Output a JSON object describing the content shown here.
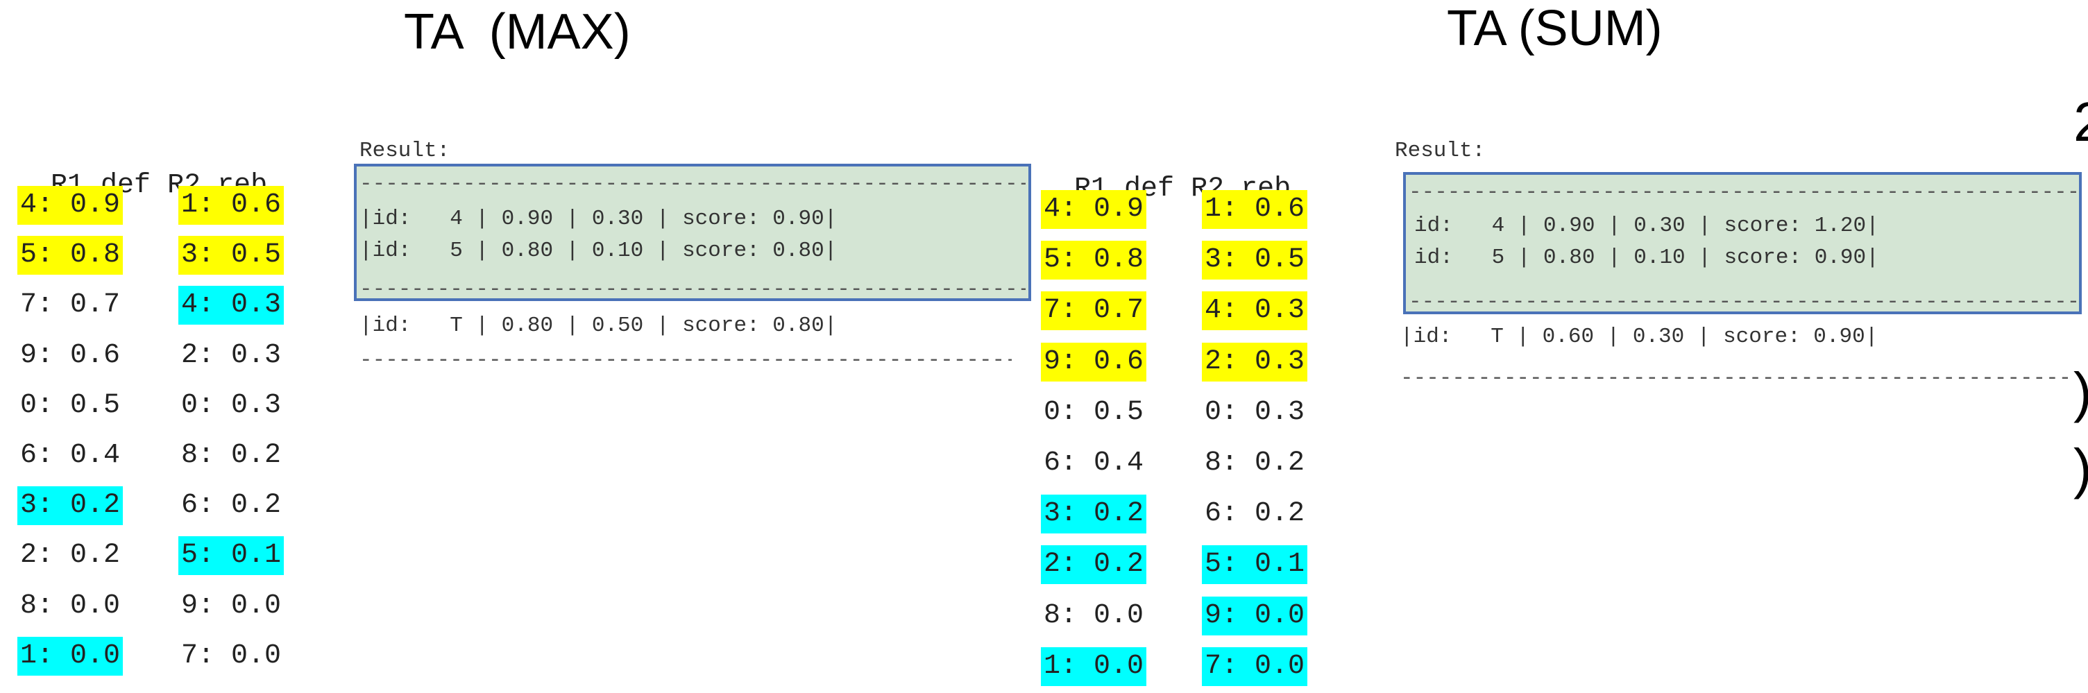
{
  "titles": {
    "left": "TA  (MAX)",
    "right": "TA (SUM)"
  },
  "columns": {
    "r1": "R1",
    "def": "def",
    "r2": "R2",
    "reb": "reb"
  },
  "max_panel": {
    "rows": [
      {
        "l": "4: 0.9",
        "lh": "y",
        "r": "1: 0.6",
        "rh": "y"
      },
      {
        "l": "5: 0.8",
        "lh": "y",
        "r": "3: 0.5",
        "rh": "y"
      },
      {
        "l": "7: 0.7",
        "lh": "",
        "r": "4: 0.3",
        "rh": "c"
      },
      {
        "l": "9: 0.6",
        "lh": "",
        "r": "2: 0.3",
        "rh": ""
      },
      {
        "l": "0: 0.5",
        "lh": "",
        "r": "0: 0.3",
        "rh": ""
      },
      {
        "l": "6: 0.4",
        "lh": "",
        "r": "8: 0.2",
        "rh": ""
      },
      {
        "l": "3: 0.2",
        "lh": "c",
        "r": "6: 0.2",
        "rh": ""
      },
      {
        "l": "2: 0.2",
        "lh": "",
        "r": "5: 0.1",
        "rh": "c"
      },
      {
        "l": "8: 0.0",
        "lh": "",
        "r": "9: 0.0",
        "rh": ""
      },
      {
        "l": "1: 0.0",
        "lh": "c",
        "r": "7: 0.0",
        "rh": ""
      }
    ],
    "result_label": "Result:",
    "result_lines": [
      "|id:   4 | 0.90 | 0.30 | score: 0.90|",
      "|id:   5 | 0.80 | 0.10 | score: 0.80|"
    ],
    "threshold_line": "|id:   T | 0.80 | 0.50 | score: 0.80|"
  },
  "sum_panel": {
    "rows": [
      {
        "l": "4: 0.9",
        "lh": "y",
        "r": "1: 0.6",
        "rh": "y"
      },
      {
        "l": "5: 0.8",
        "lh": "y",
        "r": "3: 0.5",
        "rh": "y"
      },
      {
        "l": "7: 0.7",
        "lh": "y",
        "r": "4: 0.3",
        "rh": "y"
      },
      {
        "l": "9: 0.6",
        "lh": "y",
        "r": "2: 0.3",
        "rh": "y"
      },
      {
        "l": "0: 0.5",
        "lh": "",
        "r": "0: 0.3",
        "rh": ""
      },
      {
        "l": "6: 0.4",
        "lh": "",
        "r": "8: 0.2",
        "rh": ""
      },
      {
        "l": "3: 0.2",
        "lh": "c",
        "r": "6: 0.2",
        "rh": ""
      },
      {
        "l": "2: 0.2",
        "lh": "c",
        "r": "5: 0.1",
        "rh": "c"
      },
      {
        "l": "8: 0.0",
        "lh": "",
        "r": "9: 0.0",
        "rh": "c"
      },
      {
        "l": "1: 0.0",
        "lh": "c",
        "r": "7: 0.0",
        "rh": "c"
      }
    ],
    "result_label": "Result:",
    "result_lines": [
      "id:   4 | 0.90 | 0.30 | score: 1.20|",
      "id:   5 | 0.80 | 0.10 | score: 0.90|"
    ],
    "threshold_line": "|id:   T | 0.60 | 0.30 | score: 0.90|"
  },
  "edge_marks": {
    "top": "2",
    "mid1": ")",
    "mid2": ")"
  },
  "colors": {
    "yellow": "#ffff00",
    "cyan": "#00ffff",
    "box_fill": "#d4e5d4",
    "box_border": "#4a72b8"
  }
}
